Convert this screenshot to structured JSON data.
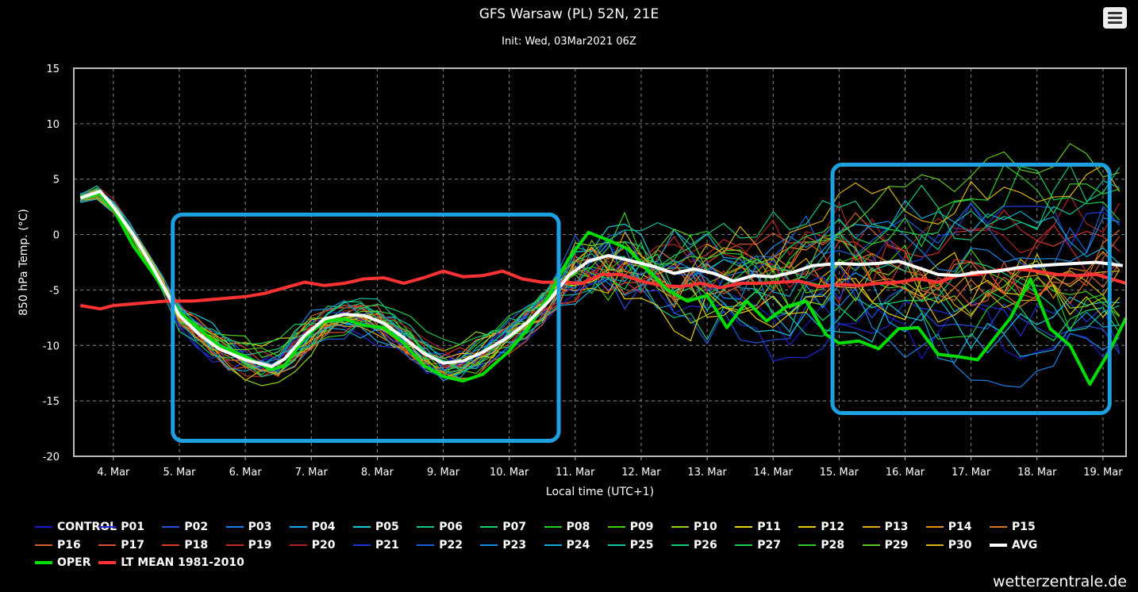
{
  "header": {
    "title": "GFS Warsaw (PL) 52N, 21E",
    "subtitle": "Init: Wed, 03Mar2021 06Z"
  },
  "menu": {
    "icon": "hamburger-menu-icon"
  },
  "credit": "wetterzentrale.de",
  "chart_data": {
    "type": "line",
    "title": "GFS Warsaw (PL) 52N, 21E",
    "subtitle": "Init: Wed, 03Mar2021 06Z",
    "xlabel": "Local time (UTC+1)",
    "ylabel": "850 hPa Temp. (°C)",
    "x_tick_labels": [
      "4. Mar",
      "5. Mar",
      "6. Mar",
      "7. Mar",
      "8. Mar",
      "9. Mar",
      "10. Mar",
      "11. Mar",
      "12. Mar",
      "13. Mar",
      "14. Mar",
      "15. Mar",
      "16. Mar",
      "17. Mar",
      "18. Mar",
      "19. Mar"
    ],
    "x_range_days": [
      3.4,
      19.35
    ],
    "x_unit": "March 2021 day of month (fractional)",
    "ylim": [
      -20,
      15
    ],
    "y_ticks": [
      -20,
      -15,
      -10,
      -5,
      0,
      5,
      10,
      15
    ],
    "grid": true,
    "legend_position": "bottom",
    "colors": {
      "background": "#000000",
      "plot_border": "#bbbbbb",
      "grid": "#888888",
      "avg": "#ffffff",
      "oper": "#00dd00",
      "lt_mean": "#ff3333",
      "highlight_box": "#1da1e0"
    },
    "highlight_boxes": [
      {
        "from_day": 4.9,
        "to_day": 10.75,
        "from_value": -18.6,
        "to_value": 1.8
      },
      {
        "from_day": 14.9,
        "to_day": 19.1,
        "from_value": -16.1,
        "to_value": 6.3
      }
    ],
    "members": [
      "CONTROL",
      "P01",
      "P02",
      "P03",
      "P04",
      "P05",
      "P06",
      "P07",
      "P08",
      "P09",
      "P10",
      "P11",
      "P12",
      "P13",
      "P14",
      "P15",
      "P16",
      "P17",
      "P18",
      "P19",
      "P20",
      "P21",
      "P22",
      "P23",
      "P24",
      "P25",
      "P26",
      "P27",
      "P28",
      "P29",
      "P30"
    ],
    "member_colors": [
      "#1a1acc",
      "#1e2fd8",
      "#2450e0",
      "#1b7fe0",
      "#14a8e8",
      "#17c8d8",
      "#11c890",
      "#16d460",
      "#22cc22",
      "#44cc11",
      "#8cd412",
      "#e8d010",
      "#e8c012",
      "#e0a814",
      "#e08c18",
      "#e07420",
      "#d86030",
      "#d84e2c",
      "#d83a2a",
      "#c82a2a",
      "#b02020",
      "#2035d8",
      "#1a62dd",
      "#168ae0",
      "#12a8d8",
      "#10c0a0",
      "#12c878",
      "#18cc50",
      "#30cc28",
      "#60c822",
      "#d8b018"
    ],
    "avg": {
      "name": "AVG",
      "days": [
        3.5,
        3.8,
        4.0,
        4.3,
        4.6,
        5.0,
        5.3,
        5.6,
        6.0,
        6.4,
        6.6,
        6.9,
        7.2,
        7.5,
        7.8,
        8.1,
        8.4,
        8.7,
        9.0,
        9.3,
        9.6,
        10.0,
        10.3,
        10.6,
        10.9,
        11.2,
        11.5,
        11.8,
        12.2,
        12.5,
        12.8,
        13.1,
        13.4,
        13.7,
        14.0,
        14.3,
        14.6,
        15.0,
        15.3,
        15.6,
        15.9,
        16.2,
        16.5,
        16.8,
        17.1,
        17.4,
        17.7,
        18.0,
        18.3,
        18.6,
        18.9,
        19.3
      ],
      "values": [
        3.3,
        3.9,
        2.5,
        0.0,
        -3.0,
        -7.3,
        -9.0,
        -10.3,
        -11.3,
        -11.9,
        -11.2,
        -9.1,
        -7.6,
        -7.2,
        -7.3,
        -8.0,
        -9.3,
        -10.7,
        -11.6,
        -11.4,
        -10.6,
        -9.2,
        -7.8,
        -6.0,
        -3.7,
        -2.4,
        -1.9,
        -2.3,
        -2.9,
        -3.5,
        -3.1,
        -3.5,
        -4.2,
        -3.7,
        -3.8,
        -3.4,
        -2.8,
        -2.6,
        -2.7,
        -2.6,
        -2.4,
        -3.0,
        -3.6,
        -3.7,
        -3.4,
        -3.3,
        -3.0,
        -2.8,
        -2.7,
        -2.6,
        -2.5,
        -2.8
      ]
    },
    "oper": {
      "name": "OPER",
      "days": [
        3.5,
        3.8,
        4.0,
        4.3,
        4.6,
        5.0,
        5.3,
        5.6,
        6.0,
        6.4,
        6.6,
        6.9,
        7.2,
        7.5,
        7.8,
        8.1,
        8.4,
        8.7,
        9.0,
        9.3,
        9.6,
        10.0,
        10.3,
        10.6,
        10.9,
        11.2,
        11.5,
        11.8,
        12.1,
        12.4,
        12.7,
        13.0,
        13.3,
        13.6,
        13.9,
        14.2,
        14.5,
        14.8,
        15.0,
        15.3,
        15.6,
        15.9,
        16.2,
        16.5,
        16.8,
        17.1,
        17.4,
        17.6,
        17.9,
        18.2,
        18.5,
        18.8,
        19.1,
        19.35
      ],
      "values": [
        3.4,
        3.7,
        2.3,
        -1.0,
        -3.5,
        -7.0,
        -8.5,
        -10.0,
        -11.0,
        -12.2,
        -11.8,
        -9.3,
        -7.8,
        -7.6,
        -8.2,
        -8.4,
        -9.8,
        -11.8,
        -12.8,
        -13.2,
        -12.6,
        -10.5,
        -8.4,
        -5.5,
        -2.2,
        0.2,
        -0.5,
        -1.3,
        -3.2,
        -5.0,
        -6.0,
        -5.5,
        -8.4,
        -6.0,
        -7.8,
        -6.5,
        -6.0,
        -9.0,
        -9.8,
        -9.6,
        -10.3,
        -8.5,
        -8.4,
        -10.8,
        -11.0,
        -11.3,
        -9.0,
        -7.5,
        -4.0,
        -8.5,
        -10.0,
        -13.5,
        -10.5,
        -7.5
      ]
    },
    "lt_mean": {
      "name": "LT MEAN 1981-2010",
      "days": [
        3.5,
        3.8,
        4.0,
        4.4,
        4.8,
        5.2,
        5.6,
        6.0,
        6.3,
        6.6,
        6.9,
        7.2,
        7.5,
        7.8,
        8.1,
        8.4,
        8.7,
        9.0,
        9.3,
        9.6,
        9.9,
        10.2,
        10.5,
        10.8,
        11.1,
        11.4,
        11.7,
        12.0,
        12.3,
        12.6,
        12.9,
        13.2,
        13.5,
        13.8,
        14.1,
        14.4,
        14.7,
        15.0,
        15.3,
        15.6,
        15.9,
        16.2,
        16.5,
        16.8,
        17.1,
        17.4,
        17.7,
        18.0,
        18.3,
        18.6,
        18.9,
        19.35
      ],
      "values": [
        -6.4,
        -6.7,
        -6.4,
        -6.2,
        -6.0,
        -6.0,
        -5.8,
        -5.6,
        -5.3,
        -4.8,
        -4.3,
        -4.6,
        -4.4,
        -4.0,
        -3.9,
        -4.4,
        -3.9,
        -3.3,
        -3.8,
        -3.7,
        -3.3,
        -4.0,
        -4.3,
        -4.3,
        -4.4,
        -3.6,
        -3.6,
        -4.2,
        -4.6,
        -4.7,
        -4.4,
        -4.8,
        -4.4,
        -4.4,
        -4.3,
        -4.2,
        -4.7,
        -4.5,
        -4.6,
        -4.4,
        -4.3,
        -4.0,
        -4.3,
        -3.7,
        -3.6,
        -3.2,
        -3.1,
        -3.3,
        -3.6,
        -3.7,
        -3.6,
        -4.4
      ]
    },
    "legend": [
      {
        "label": "CONTROL",
        "color": "#1a1acc",
        "bold_line": false
      },
      {
        "label": "P01",
        "color": "#1e2fd8",
        "bold_line": false
      },
      {
        "label": "P02",
        "color": "#2450e0",
        "bold_line": false
      },
      {
        "label": "P03",
        "color": "#1b7fe0",
        "bold_line": false
      },
      {
        "label": "P04",
        "color": "#14a8e8",
        "bold_line": false
      },
      {
        "label": "P05",
        "color": "#17c8d8",
        "bold_line": false
      },
      {
        "label": "P06",
        "color": "#11c890",
        "bold_line": false
      },
      {
        "label": "P07",
        "color": "#16d460",
        "bold_line": false
      },
      {
        "label": "P08",
        "color": "#22cc22",
        "bold_line": false
      },
      {
        "label": "P09",
        "color": "#44cc11",
        "bold_line": false
      },
      {
        "label": "P10",
        "color": "#8cd412",
        "bold_line": false
      },
      {
        "label": "P11",
        "color": "#e8d010",
        "bold_line": false
      },
      {
        "label": "P12",
        "color": "#e8c012",
        "bold_line": false
      },
      {
        "label": "P13",
        "color": "#e0a814",
        "bold_line": false
      },
      {
        "label": "P14",
        "color": "#e08c18",
        "bold_line": false
      },
      {
        "label": "P15",
        "color": "#e07420",
        "bold_line": false
      },
      {
        "label": "P16",
        "color": "#d86030",
        "bold_line": false
      },
      {
        "label": "P17",
        "color": "#d84e2c",
        "bold_line": false
      },
      {
        "label": "P18",
        "color": "#d83a2a",
        "bold_line": false
      },
      {
        "label": "P19",
        "color": "#c82a2a",
        "bold_line": false
      },
      {
        "label": "P20",
        "color": "#b02020",
        "bold_line": false
      },
      {
        "label": "P21",
        "color": "#2035d8",
        "bold_line": false
      },
      {
        "label": "P22",
        "color": "#1a62dd",
        "bold_line": false
      },
      {
        "label": "P23",
        "color": "#168ae0",
        "bold_line": false
      },
      {
        "label": "P24",
        "color": "#12a8d8",
        "bold_line": false
      },
      {
        "label": "P25",
        "color": "#10c0a0",
        "bold_line": false
      },
      {
        "label": "P26",
        "color": "#12c878",
        "bold_line": false
      },
      {
        "label": "P27",
        "color": "#18cc50",
        "bold_line": false
      },
      {
        "label": "P28",
        "color": "#30cc28",
        "bold_line": false
      },
      {
        "label": "P29",
        "color": "#60c822",
        "bold_line": false
      },
      {
        "label": "P30",
        "color": "#d8b018",
        "bold_line": false
      },
      {
        "label": "AVG",
        "color": "#ffffff",
        "bold_line": true
      },
      {
        "label": "OPER",
        "color": "#00dd00",
        "bold_line": true
      },
      {
        "label": "LT MEAN 1981-2010",
        "color": "#ff3333",
        "bold_line": true
      }
    ]
  }
}
